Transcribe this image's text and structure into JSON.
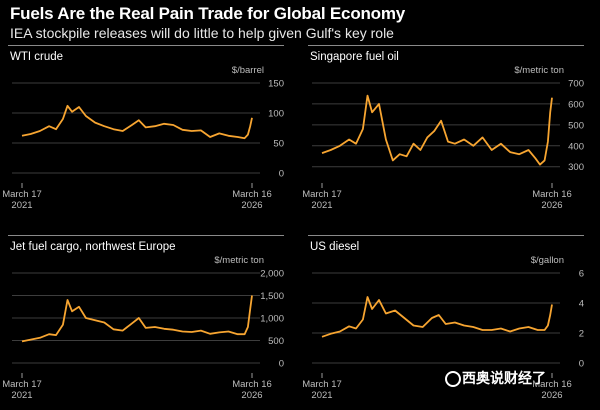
{
  "header": {
    "title": "Fuels Are the Real Pain Trade for Global Economy",
    "subtitle": "IEA stockpile releases will do little to help given Gulf's key role"
  },
  "colors": {
    "line": "#f7a531",
    "grid": "#3d3d3d",
    "tick_text": "#bdbdbd",
    "background": "#000000"
  },
  "watermark": {
    "text": "西奥说财经了"
  },
  "chart_data": [
    {
      "type": "line",
      "title": "WTI crude",
      "ylabel": "$/barrel",
      "yticks": [
        0,
        50,
        100,
        150
      ],
      "ytick_labels": [
        "0",
        "50",
        "100",
        "150"
      ],
      "ylim": [
        0,
        150
      ],
      "xtick_labels": [
        [
          "March 17",
          "2021"
        ],
        [
          "March 16",
          "2026"
        ]
      ],
      "series": [
        {
          "x": [
            2021.21,
            2021.4,
            2021.6,
            2021.8,
            2021.95,
            2022.1,
            2022.2,
            2022.3,
            2022.45,
            2022.6,
            2022.8,
            2023.0,
            2023.2,
            2023.4,
            2023.6,
            2023.75,
            2023.9,
            2024.1,
            2024.3,
            2024.5,
            2024.7,
            2024.9,
            2025.1,
            2025.3,
            2025.5,
            2025.7,
            2025.9,
            2026.05,
            2026.12,
            2026.17,
            2026.21
          ],
          "y": [
            62,
            65,
            70,
            78,
            73,
            90,
            112,
            102,
            110,
            95,
            84,
            78,
            73,
            70,
            80,
            88,
            76,
            78,
            82,
            80,
            72,
            70,
            71,
            60,
            66,
            62,
            60,
            58,
            64,
            78,
            92
          ]
        }
      ]
    },
    {
      "type": "line",
      "title": "Singapore fuel oil",
      "ylabel": "$/metric ton",
      "yticks": [
        300,
        400,
        500,
        600,
        700
      ],
      "ytick_labels": [
        "300",
        "400",
        "500",
        "600",
        "700"
      ],
      "ylim": [
        270,
        700
      ],
      "xtick_labels": [
        [
          "March 17",
          "2021"
        ],
        [
          "March 16",
          "2026"
        ]
      ],
      "series": [
        {
          "x": [
            2021.21,
            2021.4,
            2021.6,
            2021.8,
            2021.95,
            2022.1,
            2022.2,
            2022.3,
            2022.45,
            2022.6,
            2022.75,
            2022.9,
            2023.05,
            2023.2,
            2023.35,
            2023.5,
            2023.65,
            2023.8,
            2023.95,
            2024.1,
            2024.3,
            2024.5,
            2024.7,
            2024.9,
            2025.1,
            2025.3,
            2025.5,
            2025.7,
            2025.85,
            2025.95,
            2026.05,
            2026.12,
            2026.17,
            2026.21
          ],
          "y": [
            365,
            380,
            400,
            430,
            410,
            480,
            640,
            560,
            600,
            430,
            330,
            360,
            350,
            410,
            380,
            440,
            470,
            520,
            420,
            410,
            430,
            400,
            440,
            380,
            410,
            370,
            360,
            380,
            340,
            310,
            330,
            420,
            560,
            630
          ]
        }
      ]
    },
    {
      "type": "line",
      "title": "Jet fuel cargo, northwest Europe",
      "ylabel": "$/metric ton",
      "yticks": [
        0,
        500,
        1000,
        1500,
        2000
      ],
      "ytick_labels": [
        "0",
        "500",
        "1,000",
        "1,500",
        "2,000"
      ],
      "ylim": [
        0,
        2000
      ],
      "xtick_labels": [
        [
          "March 17",
          "2021"
        ],
        [
          "March 16",
          "2026"
        ]
      ],
      "series": [
        {
          "x": [
            2021.21,
            2021.4,
            2021.6,
            2021.8,
            2021.95,
            2022.1,
            2022.2,
            2022.3,
            2022.45,
            2022.6,
            2022.8,
            2023.0,
            2023.2,
            2023.4,
            2023.6,
            2023.75,
            2023.9,
            2024.1,
            2024.3,
            2024.5,
            2024.7,
            2024.9,
            2025.1,
            2025.3,
            2025.5,
            2025.7,
            2025.9,
            2026.05,
            2026.12,
            2026.17,
            2026.21
          ],
          "y": [
            480,
            520,
            560,
            640,
            620,
            850,
            1400,
            1150,
            1250,
            1000,
            950,
            900,
            750,
            720,
            880,
            1000,
            780,
            800,
            760,
            740,
            700,
            690,
            720,
            650,
            680,
            700,
            640,
            640,
            800,
            1200,
            1500
          ]
        }
      ]
    },
    {
      "type": "line",
      "title": "US diesel",
      "ylabel": "$/gallon",
      "yticks": [
        0,
        2,
        4,
        6
      ],
      "ytick_labels": [
        "0",
        "2",
        "4",
        "6"
      ],
      "ylim": [
        0,
        6
      ],
      "xtick_labels": [
        [
          "March 17",
          "2021"
        ],
        [
          "March 16",
          "2026"
        ]
      ],
      "series": [
        {
          "x": [
            2021.21,
            2021.4,
            2021.6,
            2021.8,
            2021.95,
            2022.1,
            2022.2,
            2022.3,
            2022.45,
            2022.6,
            2022.8,
            2023.0,
            2023.2,
            2023.4,
            2023.6,
            2023.75,
            2023.9,
            2024.1,
            2024.3,
            2024.5,
            2024.7,
            2024.9,
            2025.1,
            2025.3,
            2025.5,
            2025.7,
            2025.9,
            2026.05,
            2026.12,
            2026.17,
            2026.21
          ],
          "y": [
            1.75,
            1.95,
            2.1,
            2.45,
            2.3,
            2.9,
            4.4,
            3.6,
            4.2,
            3.3,
            3.5,
            3.0,
            2.5,
            2.4,
            3.0,
            3.2,
            2.6,
            2.7,
            2.5,
            2.4,
            2.2,
            2.2,
            2.3,
            2.1,
            2.3,
            2.4,
            2.2,
            2.2,
            2.5,
            3.2,
            3.9
          ]
        }
      ]
    }
  ]
}
